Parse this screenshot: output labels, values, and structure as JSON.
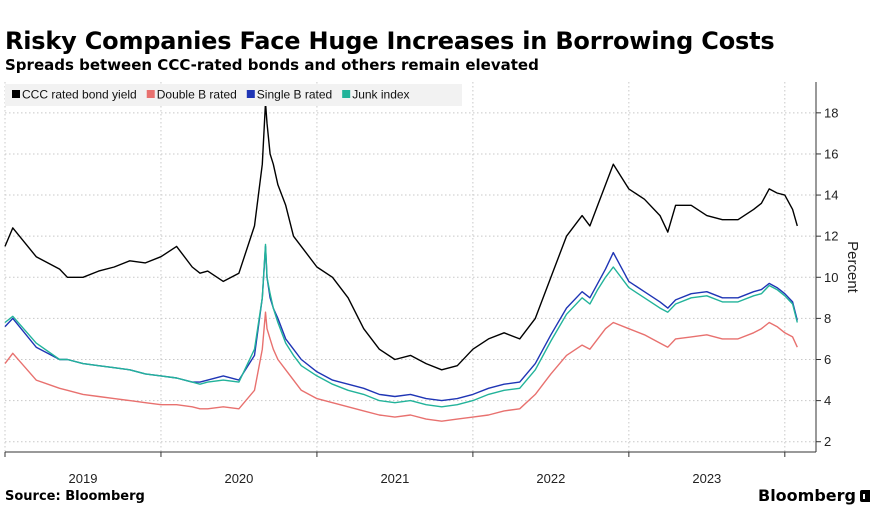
{
  "title": "Risky Companies Face Huge Increases in Borrowing Costs",
  "subtitle": "Spreads between CCC-rated bonds and others remain elevated",
  "source": "Source: Bloomberg",
  "brand": "Bloomberg",
  "chart_data": {
    "type": "line",
    "xlabel": "",
    "ylabel": "Percent",
    "xlim": [
      2018.5,
      2023.7
    ],
    "ylim": [
      1.5,
      19.5
    ],
    "yticks": [
      2,
      4,
      6,
      8,
      10,
      12,
      14,
      16,
      18
    ],
    "xticks": [
      {
        "label": "2019",
        "x": 2019.0
      },
      {
        "label": "2020",
        "x": 2020.0
      },
      {
        "label": "2021",
        "x": 2021.0
      },
      {
        "label": "2022",
        "x": 2022.0
      },
      {
        "label": "2023",
        "x": 2023.0
      }
    ],
    "grid": true,
    "legend_position": "top-left",
    "x": [
      2018.5,
      2018.55,
      2018.7,
      2018.85,
      2018.9,
      2019.0,
      2019.1,
      2019.2,
      2019.3,
      2019.4,
      2019.5,
      2019.6,
      2019.7,
      2019.75,
      2019.8,
      2019.9,
      2020.0,
      2020.1,
      2020.15,
      2020.17,
      2020.18,
      2020.2,
      2020.22,
      2020.25,
      2020.3,
      2020.35,
      2020.4,
      2020.5,
      2020.6,
      2020.7,
      2020.8,
      2020.9,
      2021.0,
      2021.1,
      2021.2,
      2021.3,
      2021.4,
      2021.5,
      2021.6,
      2021.7,
      2021.8,
      2021.9,
      2022.0,
      2022.1,
      2022.2,
      2022.25,
      2022.3,
      2022.35,
      2022.4,
      2022.5,
      2022.6,
      2022.7,
      2022.75,
      2022.8,
      2022.9,
      2023.0,
      2023.1,
      2023.2,
      2023.3,
      2023.35,
      2023.4,
      2023.45,
      2023.5,
      2023.55,
      2023.58
    ],
    "series": [
      {
        "name": "CCC rated bond yield",
        "color": "#000000",
        "values": [
          11.5,
          12.4,
          11.0,
          10.4,
          10.0,
          10.0,
          10.3,
          10.5,
          10.8,
          10.7,
          11.0,
          11.5,
          10.5,
          10.2,
          10.3,
          9.8,
          10.2,
          12.5,
          15.5,
          18.5,
          17.5,
          16.0,
          15.5,
          14.5,
          13.5,
          12.0,
          11.5,
          10.5,
          10.0,
          9.0,
          7.5,
          6.5,
          6.0,
          6.2,
          5.8,
          5.5,
          5.7,
          6.5,
          7.0,
          7.3,
          7.0,
          8.0,
          10.0,
          12.0,
          13.0,
          12.5,
          13.5,
          14.5,
          15.5,
          14.3,
          13.8,
          13.0,
          12.2,
          13.5,
          13.5,
          13.0,
          12.8,
          12.8,
          13.3,
          13.6,
          14.3,
          14.1,
          14.0,
          13.3,
          12.5
        ]
      },
      {
        "name": "Double B rated",
        "color": "#e8716f",
        "values": [
          5.8,
          6.3,
          5.0,
          4.6,
          4.5,
          4.3,
          4.2,
          4.1,
          4.0,
          3.9,
          3.8,
          3.8,
          3.7,
          3.6,
          3.6,
          3.7,
          3.6,
          4.5,
          6.5,
          8.3,
          7.5,
          7.0,
          6.5,
          6.0,
          5.5,
          5.0,
          4.5,
          4.1,
          3.9,
          3.7,
          3.5,
          3.3,
          3.2,
          3.3,
          3.1,
          3.0,
          3.1,
          3.2,
          3.3,
          3.5,
          3.6,
          4.3,
          5.3,
          6.2,
          6.7,
          6.5,
          7.0,
          7.5,
          7.8,
          7.5,
          7.2,
          6.8,
          6.6,
          7.0,
          7.1,
          7.2,
          7.0,
          7.0,
          7.3,
          7.5,
          7.8,
          7.6,
          7.3,
          7.1,
          6.6
        ]
      },
      {
        "name": "Single B rated",
        "color": "#1f35b5",
        "values": [
          7.6,
          8.0,
          6.6,
          6.0,
          6.0,
          5.8,
          5.7,
          5.6,
          5.5,
          5.3,
          5.2,
          5.1,
          4.9,
          4.9,
          5.0,
          5.2,
          5.0,
          6.2,
          9.0,
          11.5,
          10.0,
          9.0,
          8.5,
          8.0,
          7.0,
          6.5,
          6.0,
          5.4,
          5.0,
          4.8,
          4.6,
          4.3,
          4.2,
          4.3,
          4.1,
          4.0,
          4.1,
          4.3,
          4.6,
          4.8,
          4.9,
          5.8,
          7.2,
          8.5,
          9.3,
          9.0,
          9.7,
          10.4,
          11.2,
          9.8,
          9.3,
          8.8,
          8.5,
          8.9,
          9.2,
          9.3,
          9.0,
          9.0,
          9.3,
          9.4,
          9.7,
          9.5,
          9.2,
          8.8,
          7.9
        ]
      },
      {
        "name": "Junk index",
        "color": "#22b39a",
        "values": [
          7.8,
          8.1,
          6.8,
          6.0,
          6.0,
          5.8,
          5.7,
          5.6,
          5.5,
          5.3,
          5.2,
          5.1,
          4.9,
          4.8,
          4.9,
          5.0,
          4.9,
          6.5,
          9.0,
          11.6,
          10.0,
          9.2,
          8.5,
          7.8,
          6.8,
          6.2,
          5.7,
          5.2,
          4.8,
          4.5,
          4.3,
          4.0,
          3.9,
          4.0,
          3.8,
          3.7,
          3.8,
          4.0,
          4.3,
          4.5,
          4.6,
          5.5,
          6.9,
          8.2,
          9.0,
          8.7,
          9.4,
          10.0,
          10.5,
          9.5,
          9.0,
          8.5,
          8.3,
          8.7,
          9.0,
          9.1,
          8.8,
          8.8,
          9.1,
          9.2,
          9.6,
          9.4,
          9.1,
          8.7,
          7.8
        ]
      }
    ]
  }
}
